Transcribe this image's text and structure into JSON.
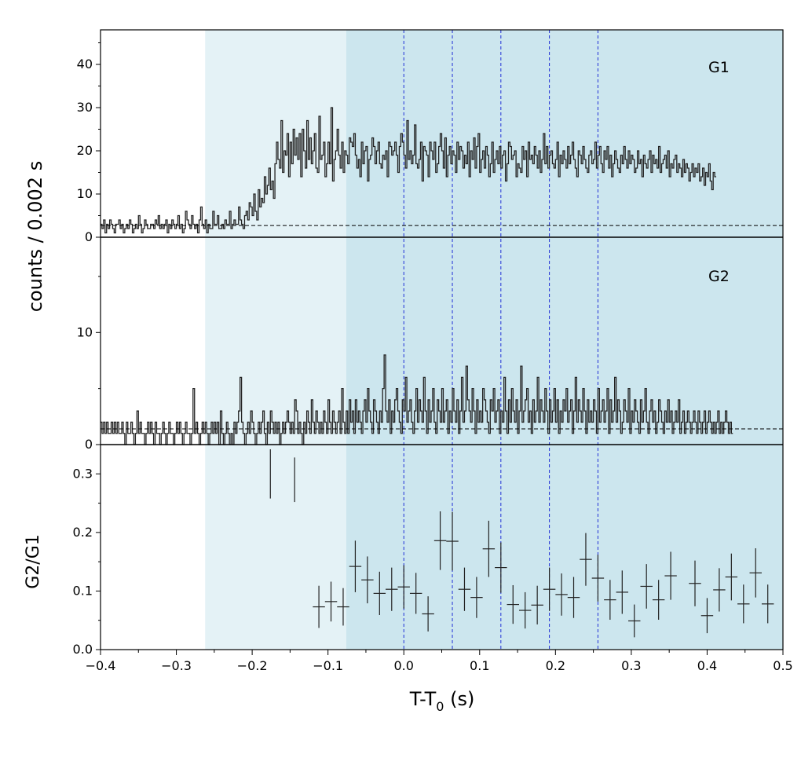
{
  "chart_data": {
    "type": "histogram-stack",
    "x_axis": {
      "label_main": "T-T",
      "label_sub": "0",
      "label_unit": " (s)",
      "lim": [
        -0.4,
        0.5
      ],
      "ticks": [
        -0.4,
        -0.3,
        -0.2,
        -0.1,
        0.0,
        0.1,
        0.2,
        0.3,
        0.4,
        0.5
      ],
      "tick_labels": [
        "−0.4",
        "−0.3",
        "−0.2",
        "−0.1",
        "0.0",
        "0.1",
        "0.2",
        "0.3",
        "0.4",
        "0.5"
      ]
    },
    "shaded_regions": [
      {
        "name": "light-region",
        "x0": -0.262,
        "x1": -0.076,
        "color": "#e4f2f6"
      },
      {
        "name": "dark-region",
        "x0": -0.076,
        "x1": 0.5,
        "color": "#cce6ee"
      }
    ],
    "vertical_lines": [
      0.0,
      0.064,
      0.128,
      0.192,
      0.256
    ],
    "vertical_line_color": "#1f2fd6",
    "panels": [
      {
        "name": "G1",
        "label": "G1",
        "ylabel": "",
        "ylim": [
          0,
          48
        ],
        "yticks": [
          0,
          10,
          20,
          30,
          40
        ],
        "ytick_labels": [
          "0",
          "10",
          "20",
          "30",
          "40"
        ],
        "background_level": 2.7,
        "bin_width": 0.002,
        "counts": [
          3,
          2,
          4,
          1,
          3,
          2,
          4,
          3,
          2,
          1,
          3,
          3,
          4,
          2,
          3,
          1,
          2,
          3,
          2,
          4,
          3,
          1,
          2,
          3,
          2,
          5,
          3,
          1,
          2,
          4,
          3,
          2,
          2,
          3,
          3,
          2,
          4,
          3,
          5,
          2,
          3,
          2,
          3,
          4,
          1,
          3,
          2,
          4,
          3,
          2,
          3,
          5,
          2,
          3,
          1,
          2,
          6,
          4,
          3,
          2,
          5,
          3,
          2,
          3,
          1,
          4,
          7,
          3,
          2,
          4,
          1,
          3,
          2,
          2,
          6,
          3,
          3,
          5,
          2,
          2,
          3,
          2,
          4,
          3,
          3,
          6,
          2,
          3,
          4,
          3,
          3,
          7,
          4,
          3,
          2,
          5,
          6,
          4,
          8,
          7,
          5,
          10,
          6,
          4,
          11,
          7,
          9,
          8,
          14,
          10,
          12,
          16,
          11,
          13,
          9,
          17,
          22,
          18,
          16,
          27,
          15,
          20,
          19,
          24,
          14,
          22,
          17,
          25,
          19,
          23,
          18,
          24,
          14,
          25,
          20,
          16,
          27,
          18,
          23,
          17,
          20,
          24,
          16,
          15,
          28,
          18,
          19,
          22,
          14,
          17,
          22,
          17,
          30,
          13,
          18,
          20,
          25,
          19,
          16,
          22,
          15,
          20,
          19,
          17,
          23,
          22,
          21,
          24,
          19,
          16,
          18,
          14,
          22,
          17,
          20,
          21,
          13,
          18,
          19,
          23,
          21,
          17,
          20,
          22,
          17,
          16,
          19,
          18,
          20,
          14,
          22,
          21,
          19,
          20,
          22,
          19,
          15,
          21,
          24,
          22,
          19,
          16,
          27,
          18,
          20,
          17,
          19,
          26,
          17,
          16,
          18,
          22,
          13,
          21,
          20,
          19,
          14,
          22,
          20,
          18,
          22,
          15,
          17,
          21,
          24,
          20,
          16,
          23,
          14,
          19,
          21,
          17,
          20,
          19,
          15,
          22,
          18,
          21,
          20,
          16,
          19,
          17,
          22,
          14,
          20,
          18,
          23,
          16,
          21,
          24,
          15,
          18,
          20,
          16,
          21,
          19,
          14,
          17,
          22,
          15,
          18,
          20,
          17,
          21,
          16,
          19,
          20,
          13,
          17,
          22,
          21,
          18,
          19,
          20,
          14,
          17,
          16,
          15,
          21,
          18,
          20,
          14,
          22,
          18,
          19,
          17,
          21,
          19,
          16,
          20,
          15,
          18,
          24,
          17,
          21,
          16,
          19,
          20,
          17,
          16,
          18,
          22,
          14,
          19,
          17,
          20,
          18,
          16,
          21,
          17,
          19,
          22,
          18,
          16,
          14,
          20,
          19,
          17,
          21,
          18,
          16,
          15,
          19,
          20,
          17,
          18,
          22,
          16,
          19,
          21,
          17,
          15,
          20,
          18,
          21,
          16,
          19,
          14,
          17,
          20,
          18,
          16,
          15,
          19,
          17,
          21,
          18,
          16,
          20,
          17,
          19,
          18,
          15,
          16,
          20,
          17,
          18,
          14,
          19,
          17,
          16,
          18,
          20,
          15,
          19,
          17,
          18,
          16,
          21,
          15,
          17,
          18,
          19,
          16,
          20,
          14,
          17,
          16,
          18,
          19,
          15,
          17,
          16,
          14,
          18,
          15,
          17,
          16,
          13,
          15,
          17,
          14,
          16,
          15,
          17,
          13,
          14,
          16,
          12,
          15,
          14,
          17,
          13,
          11,
          15,
          14
        ]
      },
      {
        "name": "G2",
        "label": "G2",
        "ylabel": "",
        "ylim": [
          0,
          18.5
        ],
        "yticks": [
          0,
          10
        ],
        "ytick_labels": [
          "0",
          "10"
        ],
        "background_level": 1.4,
        "bin_width": 0.002,
        "counts": [
          2,
          1,
          2,
          1,
          2,
          1,
          1,
          2,
          1,
          2,
          1,
          2,
          1,
          1,
          2,
          1,
          0,
          2,
          1,
          1,
          2,
          1,
          0,
          1,
          3,
          1,
          2,
          1,
          1,
          0,
          1,
          2,
          1,
          2,
          1,
          0,
          2,
          1,
          1,
          0,
          1,
          2,
          1,
          0,
          1,
          2,
          1,
          1,
          0,
          1,
          2,
          1,
          2,
          1,
          0,
          1,
          2,
          1,
          1,
          0,
          1,
          5,
          1,
          2,
          1,
          0,
          1,
          2,
          1,
          2,
          1,
          0,
          1,
          2,
          1,
          2,
          1,
          2,
          0,
          3,
          1,
          0,
          1,
          2,
          1,
          0,
          1,
          0,
          2,
          1,
          2,
          3,
          6,
          2,
          1,
          0,
          1,
          2,
          1,
          3,
          2,
          1,
          0,
          1,
          2,
          1,
          2,
          3,
          1,
          0,
          2,
          1,
          3,
          2,
          1,
          2,
          1,
          2,
          0,
          1,
          2,
          1,
          2,
          3,
          2,
          1,
          2,
          1,
          4,
          3,
          1,
          2,
          1,
          0,
          2,
          1,
          3,
          2,
          1,
          4,
          2,
          1,
          3,
          2,
          1,
          2,
          1,
          3,
          2,
          1,
          4,
          2,
          1,
          3,
          2,
          1,
          2,
          3,
          1,
          5,
          2,
          1,
          3,
          1,
          4,
          2,
          3,
          1,
          4,
          2,
          3,
          2,
          1,
          3,
          4,
          2,
          5,
          3,
          2,
          1,
          4,
          3,
          2,
          1,
          3,
          2,
          5,
          8,
          3,
          2,
          4,
          1,
          3,
          2,
          4,
          5,
          3,
          2,
          1,
          4,
          3,
          6,
          2,
          3,
          4,
          2,
          1,
          3,
          5,
          2,
          4,
          3,
          2,
          6,
          3,
          1,
          4,
          2,
          3,
          5,
          2,
          1,
          4,
          3,
          2,
          5,
          2,
          3,
          4,
          1,
          3,
          2,
          5,
          3,
          2,
          4,
          1,
          3,
          6,
          2,
          3,
          7,
          4,
          3,
          2,
          5,
          3,
          1,
          4,
          2,
          3,
          2,
          5,
          4,
          3,
          2,
          1,
          4,
          3,
          5,
          2,
          3,
          4,
          1,
          3,
          2,
          6,
          3,
          1,
          4,
          2,
          5,
          3,
          2,
          4,
          1,
          3,
          7,
          2,
          3,
          4,
          5,
          2,
          3,
          1,
          4,
          2,
          3,
          6,
          2,
          4,
          3,
          2,
          5,
          3,
          1,
          4,
          2,
          3,
          5,
          2,
          4,
          1,
          3,
          2,
          4,
          3,
          5,
          2,
          3,
          4,
          1,
          3,
          6,
          2,
          4,
          3,
          2,
          5,
          3,
          1,
          4,
          2,
          3,
          2,
          4,
          3,
          1,
          5,
          2,
          3,
          4,
          2,
          3,
          5,
          1,
          4,
          2,
          3,
          6,
          2,
          4,
          3,
          1,
          2,
          4,
          3,
          2,
          5,
          1,
          3,
          2,
          4,
          3,
          2,
          1,
          4,
          2,
          3,
          5,
          2,
          1,
          3,
          4,
          2,
          3,
          1,
          2,
          4,
          3,
          2,
          1,
          3,
          2,
          4,
          2,
          3,
          1,
          2,
          3,
          2,
          4,
          1,
          2,
          3,
          1,
          2,
          3,
          2,
          1,
          2,
          3,
          2,
          1,
          3,
          2,
          1,
          2,
          3,
          1,
          2,
          3,
          2,
          1,
          2,
          1,
          2,
          3,
          1,
          2,
          1,
          2,
          3,
          2,
          1,
          2,
          1
        ]
      },
      {
        "name": "G2/G1",
        "label": "",
        "ylabel": "G2/G1",
        "ylim": [
          0.0,
          0.35
        ],
        "yticks": [
          0.0,
          0.1,
          0.2,
          0.3
        ],
        "ytick_labels": [
          "0.0",
          "0.1",
          "0.2",
          "0.3"
        ],
        "points": [
          {
            "x": -0.176,
            "y": 0.3,
            "xerr": 0,
            "yerr": 0.042
          },
          {
            "x": -0.144,
            "y": 0.29,
            "xerr": 0,
            "yerr": 0.038
          },
          {
            "x": -0.112,
            "y": 0.073,
            "xerr": 0.008,
            "yerr": 0.036
          },
          {
            "x": -0.096,
            "y": 0.082,
            "xerr": 0.008,
            "yerr": 0.034
          },
          {
            "x": -0.08,
            "y": 0.073,
            "xerr": 0.008,
            "yerr": 0.032
          },
          {
            "x": -0.064,
            "y": 0.142,
            "xerr": 0.008,
            "yerr": 0.044
          },
          {
            "x": -0.048,
            "y": 0.119,
            "xerr": 0.008,
            "yerr": 0.04
          },
          {
            "x": -0.032,
            "y": 0.096,
            "xerr": 0.008,
            "yerr": 0.037
          },
          {
            "x": -0.016,
            "y": 0.103,
            "xerr": 0.008,
            "yerr": 0.037
          },
          {
            "x": 0.0,
            "y": 0.107,
            "xerr": 0.008,
            "yerr": 0.037
          },
          {
            "x": 0.016,
            "y": 0.096,
            "xerr": 0.008,
            "yerr": 0.035
          },
          {
            "x": 0.032,
            "y": 0.061,
            "xerr": 0.008,
            "yerr": 0.03
          },
          {
            "x": 0.048,
            "y": 0.186,
            "xerr": 0.008,
            "yerr": 0.05
          },
          {
            "x": 0.064,
            "y": 0.185,
            "xerr": 0.008,
            "yerr": 0.05
          },
          {
            "x": 0.08,
            "y": 0.103,
            "xerr": 0.008,
            "yerr": 0.037
          },
          {
            "x": 0.096,
            "y": 0.089,
            "xerr": 0.008,
            "yerr": 0.035
          },
          {
            "x": 0.112,
            "y": 0.172,
            "xerr": 0.008,
            "yerr": 0.048
          },
          {
            "x": 0.128,
            "y": 0.14,
            "xerr": 0.008,
            "yerr": 0.043
          },
          {
            "x": 0.144,
            "y": 0.077,
            "xerr": 0.008,
            "yerr": 0.033
          },
          {
            "x": 0.16,
            "y": 0.067,
            "xerr": 0.008,
            "yerr": 0.031
          },
          {
            "x": 0.176,
            "y": 0.076,
            "xerr": 0.008,
            "yerr": 0.033
          },
          {
            "x": 0.192,
            "y": 0.103,
            "xerr": 0.008,
            "yerr": 0.037
          },
          {
            "x": 0.208,
            "y": 0.094,
            "xerr": 0.008,
            "yerr": 0.036
          },
          {
            "x": 0.224,
            "y": 0.089,
            "xerr": 0.008,
            "yerr": 0.035
          },
          {
            "x": 0.24,
            "y": 0.154,
            "xerr": 0.008,
            "yerr": 0.045
          },
          {
            "x": 0.256,
            "y": 0.122,
            "xerr": 0.008,
            "yerr": 0.04
          },
          {
            "x": 0.272,
            "y": 0.085,
            "xerr": 0.008,
            "yerr": 0.034
          },
          {
            "x": 0.288,
            "y": 0.098,
            "xerr": 0.008,
            "yerr": 0.037
          },
          {
            "x": 0.304,
            "y": 0.049,
            "xerr": 0.008,
            "yerr": 0.028
          },
          {
            "x": 0.32,
            "y": 0.108,
            "xerr": 0.008,
            "yerr": 0.038
          },
          {
            "x": 0.336,
            "y": 0.085,
            "xerr": 0.008,
            "yerr": 0.034
          },
          {
            "x": 0.352,
            "y": 0.126,
            "xerr": 0.008,
            "yerr": 0.041
          },
          {
            "x": 0.384,
            "y": 0.113,
            "xerr": 0.008,
            "yerr": 0.039
          },
          {
            "x": 0.4,
            "y": 0.058,
            "xerr": 0.008,
            "yerr": 0.03
          },
          {
            "x": 0.416,
            "y": 0.102,
            "xerr": 0.008,
            "yerr": 0.037
          },
          {
            "x": 0.432,
            "y": 0.124,
            "xerr": 0.008,
            "yerr": 0.04
          },
          {
            "x": 0.448,
            "y": 0.078,
            "xerr": 0.008,
            "yerr": 0.033
          },
          {
            "x": 0.464,
            "y": 0.131,
            "xerr": 0.008,
            "yerr": 0.042
          },
          {
            "x": 0.48,
            "y": 0.078,
            "xerr": 0.008,
            "yerr": 0.033
          }
        ]
      }
    ],
    "shared_ylabel": "counts /  0.002 s"
  }
}
